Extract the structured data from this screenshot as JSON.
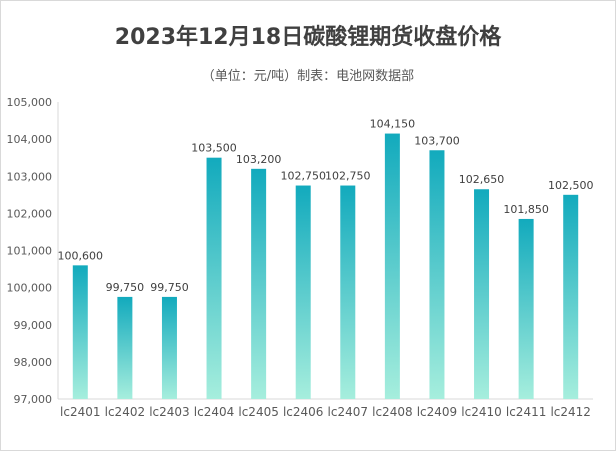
{
  "chart_data": {
    "type": "bar",
    "title": "2023年12月18日碳酸锂期货收盘价格",
    "subtitle": "（单位：元/吨）制表：电池网数据部",
    "categories": [
      "lc2401",
      "lc2402",
      "lc2403",
      "lc2404",
      "lc2405",
      "lc2406",
      "lc2407",
      "lc2408",
      "lc2409",
      "lc2410",
      "lc2411",
      "lc2412"
    ],
    "values": [
      100600,
      99750,
      99750,
      103500,
      103200,
      102750,
      102750,
      104150,
      103700,
      102650,
      101850,
      102500
    ],
    "ylim": [
      97000,
      105000
    ],
    "yticks": [
      97000,
      98000,
      99000,
      100000,
      101000,
      102000,
      103000,
      104000,
      105000
    ],
    "grid": false,
    "legend": "none",
    "colors": {
      "bar_top": "#12aabd",
      "bar_bottom": "#a6eedd"
    }
  }
}
